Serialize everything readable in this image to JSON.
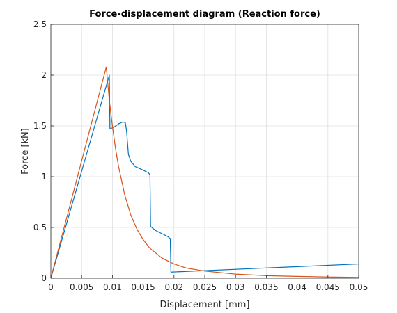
{
  "chart_data": {
    "type": "line",
    "title": "Force-displacement diagram (Reaction force)",
    "xlabel": "Displacement [mm]",
    "ylabel": "Force [kN]",
    "xlim": [
      0,
      0.05
    ],
    "ylim": [
      0,
      2.5
    ],
    "xticks": [
      0,
      0.005,
      0.01,
      0.015,
      0.02,
      0.025,
      0.03,
      0.035,
      0.04,
      0.045,
      0.05
    ],
    "xtick_labels": [
      "0",
      "0.005",
      "0.01",
      "0.015",
      "0.02",
      "0.025",
      "0.03",
      "0.035",
      "0.04",
      "0.045",
      "0.05"
    ],
    "yticks": [
      0,
      0.5,
      1,
      1.5,
      2,
      2.5
    ],
    "ytick_labels": [
      "0",
      "0.5",
      "1",
      "1.5",
      "2",
      "2.5"
    ],
    "grid": true,
    "series": [
      {
        "color": "#0072BD",
        "x": [
          0,
          0.0095,
          0.0096,
          0.0103,
          0.011,
          0.0117,
          0.0121,
          0.0123,
          0.0126,
          0.013,
          0.0137,
          0.0148,
          0.0158,
          0.0161,
          0.0162,
          0.017,
          0.018,
          0.019,
          0.0194,
          0.0195,
          0.05
        ],
        "y": [
          0,
          2.0,
          1.47,
          1.49,
          1.52,
          1.54,
          1.53,
          1.45,
          1.22,
          1.15,
          1.1,
          1.07,
          1.04,
          1.02,
          0.51,
          0.47,
          0.44,
          0.41,
          0.39,
          0.06,
          0.14
        ]
      },
      {
        "color": "#D95319",
        "x": [
          0,
          0.009,
          0.0095,
          0.01,
          0.0105,
          0.011,
          0.012,
          0.013,
          0.014,
          0.015,
          0.016,
          0.018,
          0.02,
          0.022,
          0.025,
          0.03,
          0.035,
          0.04,
          0.045,
          0.05
        ],
        "y": [
          0,
          2.08,
          1.75,
          1.5,
          1.28,
          1.1,
          0.82,
          0.62,
          0.48,
          0.38,
          0.3,
          0.2,
          0.14,
          0.1,
          0.07,
          0.04,
          0.025,
          0.018,
          0.012,
          0.008
        ]
      }
    ]
  }
}
